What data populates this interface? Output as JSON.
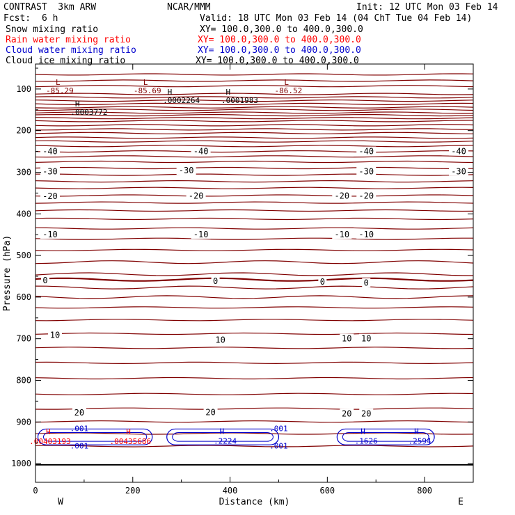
{
  "header": {
    "left_title": "CONTRAST  3km ARW",
    "center_title": "NCAR/MMM",
    "init": "Init: 12 UTC Mon 03 Feb 14",
    "fcst_label": "Fcst:",
    "fcst_value": "6 h",
    "valid": "Valid: 18 UTC Mon 03 Feb 14 (04 ChT Tue 04 Feb 14)"
  },
  "legend": [
    {
      "label": "Snow mixing ratio",
      "xy": "XY= 100.0,300.0 to 400.0,300.0",
      "color": "#000000"
    },
    {
      "label": "Rain water mixing ratio",
      "xy": "XY= 100.0,300.0 to 400.0,300.0",
      "color": "#ff0000"
    },
    {
      "label": "Cloud water mixing ratio",
      "xy": "XY= 100.0,300.0 to 400.0,300.0",
      "color": "#0000cc"
    },
    {
      "label": "Cloud ice mixing ratio",
      "xy": "XY= 100.0,300.0 to 400.0,300.0",
      "color": "#000000"
    }
  ],
  "chart_data": {
    "type": "contour",
    "xlabel": "Distance (km)",
    "ylabel": "Pressure (hPa)",
    "xlim": [
      0,
      900
    ],
    "ylim": [
      1045,
      40
    ],
    "xticks": [
      0,
      200,
      400,
      600,
      800
    ],
    "yticks": [
      100,
      200,
      300,
      400,
      500,
      600,
      700,
      800,
      900,
      1000
    ],
    "x_end_labels": {
      "left": "W",
      "right": "E"
    },
    "temperature_contours": {
      "color": "#800000",
      "isotherm_pressures": [
        65,
        80,
        93,
        112,
        120,
        128,
        136,
        144,
        150,
        157,
        163,
        170,
        177,
        187,
        197,
        206,
        217,
        226,
        237,
        250,
        262,
        275,
        290,
        306,
        322,
        338,
        356,
        373,
        392,
        412,
        435,
        460,
        487,
        516,
        545,
        558,
        577,
        600,
        625,
        655,
        688,
        722,
        758,
        795,
        833,
        868,
        899,
        928,
        958
      ],
      "labels": [
        {
          "text": "-40",
          "x": 30,
          "p": 250
        },
        {
          "text": "-40",
          "x": 340,
          "p": 250
        },
        {
          "text": "-40",
          "x": 680,
          "p": 250
        },
        {
          "text": "-40",
          "x": 870,
          "p": 250
        },
        {
          "text": "-30",
          "x": 30,
          "p": 298
        },
        {
          "text": "-30",
          "x": 310,
          "p": 296
        },
        {
          "text": "-30",
          "x": 680,
          "p": 298
        },
        {
          "text": "-30",
          "x": 870,
          "p": 298
        },
        {
          "text": "-20",
          "x": 30,
          "p": 358
        },
        {
          "text": "-20",
          "x": 330,
          "p": 357
        },
        {
          "text": "-20",
          "x": 630,
          "p": 357
        },
        {
          "text": "-20",
          "x": 680,
          "p": 357
        },
        {
          "text": "-10",
          "x": 30,
          "p": 450
        },
        {
          "text": "-10",
          "x": 340,
          "p": 450
        },
        {
          "text": "-10",
          "x": 630,
          "p": 450
        },
        {
          "text": "-10",
          "x": 680,
          "p": 450
        },
        {
          "text": "0",
          "x": 20,
          "p": 560
        },
        {
          "text": "0",
          "x": 370,
          "p": 562
        },
        {
          "text": "0",
          "x": 590,
          "p": 563
        },
        {
          "text": "0",
          "x": 680,
          "p": 566
        },
        {
          "text": "10",
          "x": 40,
          "p": 691
        },
        {
          "text": "10",
          "x": 380,
          "p": 703
        },
        {
          "text": "10",
          "x": 640,
          "p": 700
        },
        {
          "text": "10",
          "x": 680,
          "p": 700
        },
        {
          "text": "20",
          "x": 90,
          "p": 878
        },
        {
          "text": "20",
          "x": 360,
          "p": 877
        },
        {
          "text": "20",
          "x": 640,
          "p": 880
        },
        {
          "text": "20",
          "x": 680,
          "p": 880
        }
      ],
      "lows": [
        {
          "text": "-85.29",
          "x": 50,
          "p": 100
        },
        {
          "text": "-85.69",
          "x": 230,
          "p": 100
        },
        {
          "text": "-86.52",
          "x": 520,
          "p": 100
        }
      ]
    },
    "snow_maxima": [
      {
        "text": ".0003772",
        "x": 110,
        "p": 155
      },
      {
        "text": ".0002264",
        "x": 300,
        "p": 127
      },
      {
        "text": ".0001983",
        "x": 420,
        "p": 127
      }
    ],
    "rain_maxima": [
      {
        "text": ".00403193",
        "x": 30,
        "p": 943
      },
      {
        "text": ".00435686",
        "x": 195,
        "p": 943
      }
    ],
    "cloud_water": {
      "color": "#0000cc",
      "contour_value": ".001",
      "labels": [
        {
          "text": ".001",
          "x": 90,
          "p": 915
        },
        {
          "text": ".001",
          "x": 90,
          "p": 957
        },
        {
          "text": ".001",
          "x": 500,
          "p": 915
        },
        {
          "text": ".001",
          "x": 500,
          "p": 957
        }
      ],
      "maxima": [
        {
          "text": ".2224",
          "x": 390,
          "p": 942
        },
        {
          "text": ".1626",
          "x": 680,
          "p": 942
        },
        {
          "text": ".2594",
          "x": 790,
          "p": 942
        }
      ]
    }
  }
}
